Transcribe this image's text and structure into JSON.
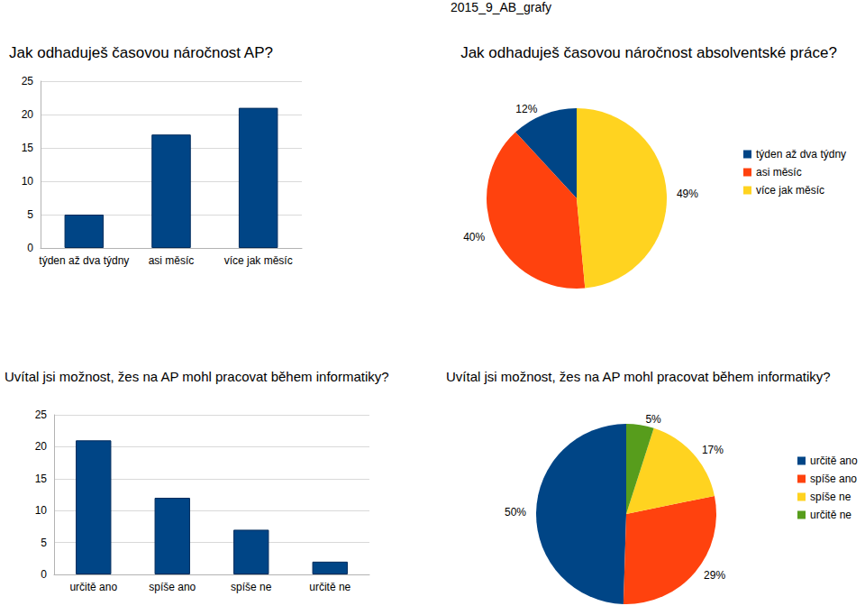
{
  "header": "2015_9_AB_grafy",
  "chart_data": [
    {
      "type": "bar",
      "title": "Jak odhaduješ časovou náročnost AP?",
      "categories": [
        "týden až dva týdny",
        "asi měsíc",
        "více jak měsíc"
      ],
      "values": [
        5,
        17,
        21
      ],
      "color": "#004586",
      "ylim": [
        0,
        25
      ],
      "yticks": [
        0,
        5,
        10,
        15,
        20,
        25
      ],
      "grid": true
    },
    {
      "type": "pie",
      "title": "Jak odhaduješ časovou náročnost absolventské práce?",
      "categories": [
        "týden až dva týdny",
        "asi měsíc",
        "více jak měsíc"
      ],
      "values": [
        12,
        40,
        49
      ],
      "value_labels": [
        "12%",
        "40%",
        "49%"
      ],
      "colors": [
        "#004586",
        "#ff420e",
        "#ffd320"
      ],
      "legend": "right",
      "data_labels": true
    },
    {
      "type": "bar",
      "title": "Uvítal jsi možnost, žes na AP mohl pracovat během informatiky?",
      "categories": [
        "určitě ano",
        "spíše ano",
        "spíše ne",
        "určitě ne"
      ],
      "values": [
        21,
        12,
        7,
        2
      ],
      "color": "#004586",
      "ylim": [
        0,
        25
      ],
      "yticks": [
        0,
        5,
        10,
        15,
        20,
        25
      ],
      "grid": true
    },
    {
      "type": "pie",
      "title": "Uvítal jsi možnost, žes na AP mohl pracovat během informatiky?",
      "categories": [
        "určitě ano",
        "spíše ano",
        "spíše ne",
        "určitě ne"
      ],
      "values": [
        50,
        29,
        17,
        5
      ],
      "value_labels": [
        "50%",
        "29%",
        "17%",
        "5%"
      ],
      "colors": [
        "#004586",
        "#ff420e",
        "#ffd320",
        "#579d1c"
      ],
      "legend": "right",
      "data_labels": true
    }
  ]
}
